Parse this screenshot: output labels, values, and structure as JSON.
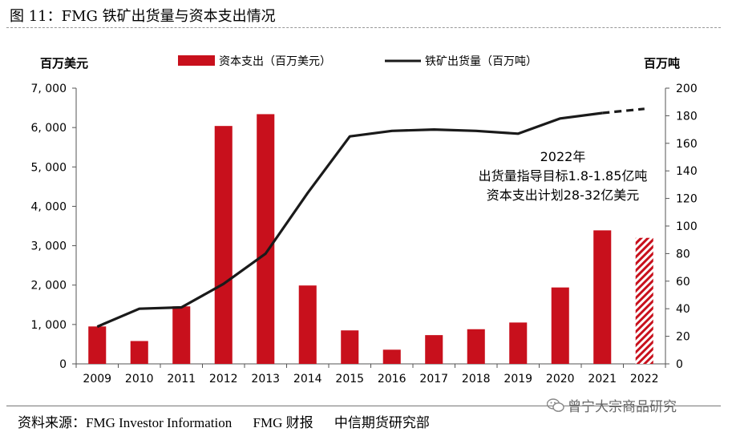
{
  "figure": {
    "title": "图 11：FMG 铁矿出货量与资本支出情况",
    "source_label": "资料来源：FMG Investor Information",
    "source_items": [
      "FMG 财报",
      "中信期货研究部"
    ],
    "watermark": "曾宁大宗商品研究",
    "watermark_icon": "wechat-icon"
  },
  "chart_data": {
    "type": "bar+line",
    "categories": [
      "2009",
      "2010",
      "2011",
      "2012",
      "2013",
      "2014",
      "2015",
      "2016",
      "2017",
      "2018",
      "2019",
      "2020",
      "2021",
      "2022"
    ],
    "left_axis": {
      "label": "百万美元",
      "min": 0,
      "max": 7000,
      "ticks": [
        0,
        1000,
        2000,
        3000,
        4000,
        5000,
        6000,
        7000
      ],
      "tick_labels": [
        "0",
        "1, 000",
        "2, 000",
        "3, 000",
        "4, 000",
        "5, 000",
        "6, 000",
        "7, 000"
      ]
    },
    "right_axis": {
      "label": "百万吨",
      "min": 0,
      "max": 200,
      "ticks": [
        0,
        20,
        40,
        60,
        80,
        100,
        120,
        140,
        160,
        180,
        200
      ],
      "tick_labels": [
        "0",
        "20",
        "40",
        "60",
        "80",
        "100",
        "120",
        "140",
        "160",
        "180",
        "200"
      ]
    },
    "series": [
      {
        "name": "资本支出（百万美元）",
        "type": "bar",
        "axis": "left",
        "color": "#c8101c",
        "values": [
          950,
          580,
          1460,
          6040,
          6340,
          1990,
          850,
          360,
          730,
          880,
          1050,
          1940,
          3390,
          3200
        ],
        "hatched_index": 13
      },
      {
        "name": "铁矿出货量（百万吨）",
        "type": "line",
        "axis": "right",
        "color": "#1a1a1a",
        "values": [
          27,
          40,
          41,
          58,
          80,
          124,
          165,
          169,
          170,
          169,
          167,
          178,
          182,
          185
        ],
        "dashed_from_index": 12
      }
    ],
    "annotation": [
      "2022年",
      "出货量指导目标1.8-1.85亿吨",
      "资本支出计划28-32亿美元"
    ],
    "legend_position": "top",
    "grid": false
  }
}
